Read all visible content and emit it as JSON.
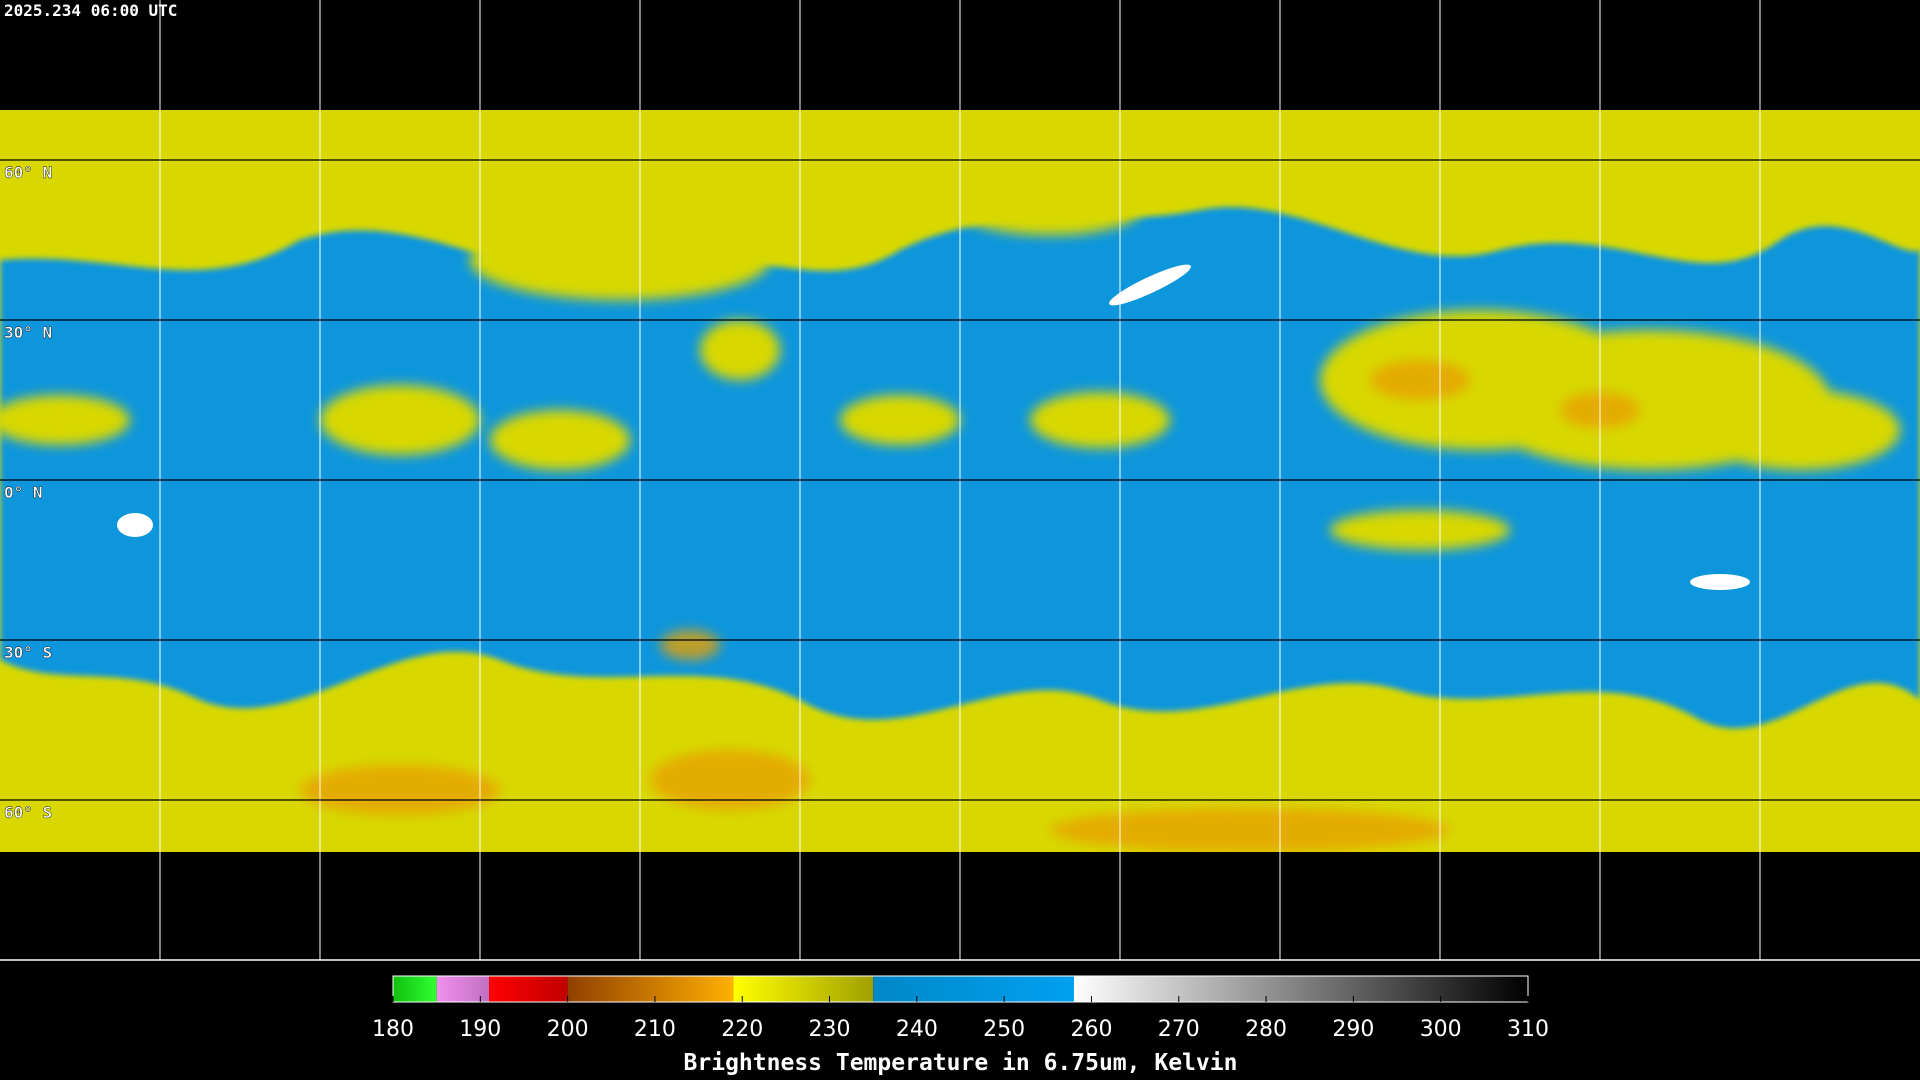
{
  "title": "2025.234 06:00 UTC",
  "map": {
    "lat_lines": [
      {
        "value": 60,
        "label": "60° N"
      },
      {
        "value": 30,
        "label": "30° N"
      },
      {
        "value": 0,
        "label": "0° N"
      },
      {
        "value": -30,
        "label": "30° S"
      },
      {
        "value": -60,
        "label": "60° S"
      }
    ]
  },
  "colorbar": {
    "label": "Brightness Temperature in 6.75um, Kelvin",
    "lim": [
      180,
      310
    ],
    "ticks": [
      180,
      190,
      200,
      210,
      220,
      230,
      240,
      250,
      260,
      270,
      280,
      290,
      300,
      310
    ],
    "segments": [
      {
        "from": 180,
        "to": 185,
        "colors": [
          "#10c010",
          "#30ff30"
        ]
      },
      {
        "from": 185,
        "to": 191,
        "colors": [
          "#f090f0",
          "#c070c0"
        ]
      },
      {
        "from": 191,
        "to": 200,
        "colors": [
          "#ff0000",
          "#c00000"
        ]
      },
      {
        "from": 200,
        "to": 219,
        "colors": [
          "#904000",
          "#ffb000"
        ]
      },
      {
        "from": 219,
        "to": 235,
        "colors": [
          "#ffff00",
          "#a0a000"
        ]
      },
      {
        "from": 235,
        "to": 258,
        "colors": [
          "#0088c8",
          "#00a0f0"
        ]
      },
      {
        "from": 258,
        "to": 310,
        "colors": [
          "#ffffff",
          "#000000"
        ]
      }
    ]
  }
}
